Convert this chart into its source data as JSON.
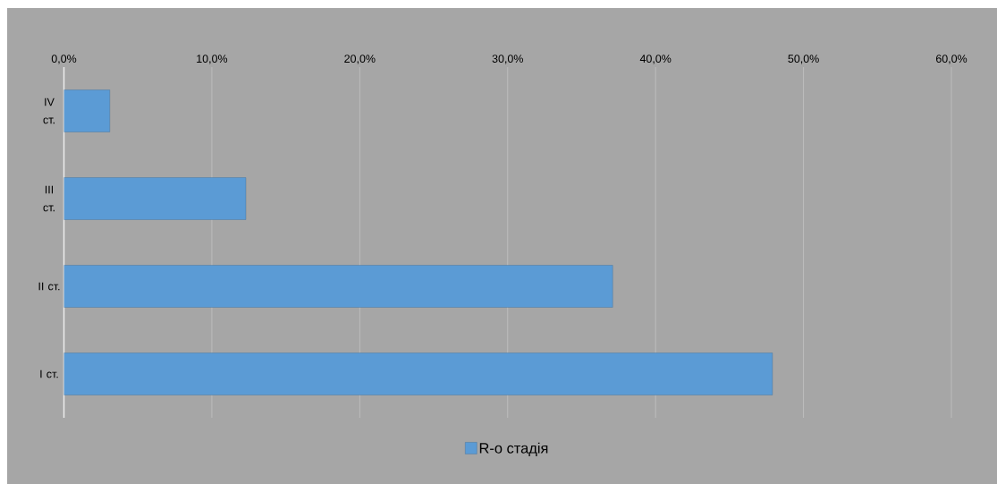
{
  "chart_data": {
    "type": "bar",
    "orientation": "horizontal",
    "categories": [
      "IV ст.",
      "III ст.",
      "II ст.",
      "I ст."
    ],
    "series": [
      {
        "name": "R-о стадія",
        "color": "#5b9bd5",
        "values": [
          3.1,
          12.3,
          37.1,
          47.9
        ]
      }
    ],
    "xlim": [
      0,
      60
    ],
    "xticks": [
      {
        "value": 0,
        "label": "0,0%"
      },
      {
        "value": 10,
        "label": "10,0%"
      },
      {
        "value": 20,
        "label": "20,0%"
      },
      {
        "value": 30,
        "label": "30,0%"
      },
      {
        "value": 40,
        "label": "40,0%"
      },
      {
        "value": 50,
        "label": "50,0%"
      },
      {
        "value": 60,
        "label": "60,0%"
      }
    ],
    "grid": "x",
    "legend": "bottom"
  }
}
